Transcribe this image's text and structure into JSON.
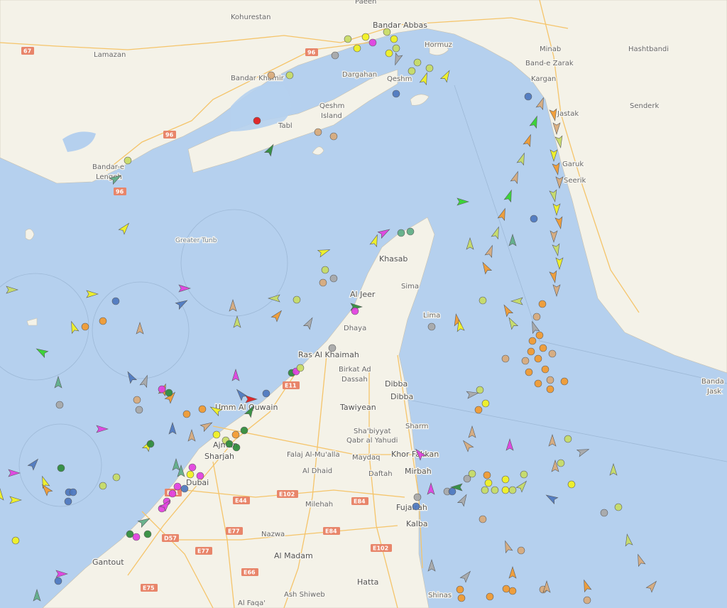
{
  "map": {
    "colors": {
      "water": "#b5d0ee",
      "land": "#f4f2e8",
      "road": "#f5c46a",
      "border": "#c9b8c9"
    },
    "places": [
      {
        "id": "paeen",
        "text": "Paeen"
      },
      {
        "id": "bandar-abbas",
        "text": "Bandar Abbas"
      },
      {
        "id": "kohurestan",
        "text": "Kohurestan"
      },
      {
        "id": "minab",
        "text": "Minab"
      },
      {
        "id": "hashtbandi",
        "text": "Hashtbandi"
      },
      {
        "id": "lamazan",
        "text": "Lamazan"
      },
      {
        "id": "hormuz",
        "text": "Hormuz"
      },
      {
        "id": "band-e-zarak",
        "text": "Band-e Zarak"
      },
      {
        "id": "bandar-khamir",
        "text": "Bandar Khamir"
      },
      {
        "id": "dargahan",
        "text": "Dargahan"
      },
      {
        "id": "qeshm",
        "text": "Qeshm"
      },
      {
        "id": "kargan",
        "text": "Kargan"
      },
      {
        "id": "qeshm-island-1",
        "text": "Qeshm"
      },
      {
        "id": "qeshm-island-2",
        "text": "Island"
      },
      {
        "id": "tabl",
        "text": "Tabl"
      },
      {
        "id": "jask-west",
        "text": "Jastak"
      },
      {
        "id": "senderk",
        "text": "Senderk"
      },
      {
        "id": "bandar-lengeh-1",
        "text": "Bandar-e"
      },
      {
        "id": "bandar-lengeh-2",
        "text": "Lengeh"
      },
      {
        "id": "garuk",
        "text": "Garuk"
      },
      {
        "id": "seerik",
        "text": "Seerik"
      },
      {
        "id": "greater-tunb",
        "text": "Greater Tunb"
      },
      {
        "id": "khasab",
        "text": "Khasab"
      },
      {
        "id": "sima",
        "text": "Sima"
      },
      {
        "id": "al-jeer",
        "text": "Al Jeer"
      },
      {
        "id": "lima",
        "text": "Lima"
      },
      {
        "id": "dhaya",
        "text": "Dhaya"
      },
      {
        "id": "ras-al-khaimah",
        "text": "Ras Al Khaimah"
      },
      {
        "id": "birkat-1",
        "text": "Birkat Ad"
      },
      {
        "id": "birkat-2",
        "text": "Dassah"
      },
      {
        "id": "dibba-1",
        "text": "Dibba"
      },
      {
        "id": "dibba-2",
        "text": "Dibba"
      },
      {
        "id": "bandar-jask-1",
        "text": "Banda"
      },
      {
        "id": "bandar-jask-2",
        "text": "Jask"
      },
      {
        "id": "umm-al-quwain",
        "text": "Umm Al Quwain"
      },
      {
        "id": "tawiyean",
        "text": "Tawiyean"
      },
      {
        "id": "sharm",
        "text": "Sharm"
      },
      {
        "id": "shabiyyat-1",
        "text": "Sha'biyyat"
      },
      {
        "id": "shabiyyat-2",
        "text": "Qabr al Yahudi"
      },
      {
        "id": "ajman",
        "text": "Ajman"
      },
      {
        "id": "sharjah",
        "text": "Sharjah"
      },
      {
        "id": "falaj",
        "text": "Falaj Al-Mu'alla"
      },
      {
        "id": "maydaq",
        "text": "Maydaq"
      },
      {
        "id": "khor-fakkan",
        "text": "Khor Fakkan"
      },
      {
        "id": "al-dhaid",
        "text": "Al Dhaid"
      },
      {
        "id": "daftah",
        "text": "Daftah"
      },
      {
        "id": "mirbah",
        "text": "Mirbah"
      },
      {
        "id": "dubai",
        "text": "Dubai"
      },
      {
        "id": "milehah",
        "text": "Milehah"
      },
      {
        "id": "fujairah",
        "text": "Fujairah"
      },
      {
        "id": "kalba",
        "text": "Kalba"
      },
      {
        "id": "nazwa",
        "text": "Nazwa"
      },
      {
        "id": "al-madam",
        "text": "Al Madam"
      },
      {
        "id": "gantout",
        "text": "Gantout"
      },
      {
        "id": "hatta",
        "text": "Hatta"
      },
      {
        "id": "ash-shiweb",
        "text": "Ash Shiweb"
      },
      {
        "id": "shinas",
        "text": "Shinas"
      },
      {
        "id": "al-faqa",
        "text": "Al Faqa'"
      }
    ],
    "road_shields": [
      "67",
      "96",
      "96",
      "96",
      "E11",
      "E11",
      "E102",
      "E84",
      "E84",
      "E44",
      "E102",
      "E77",
      "D57",
      "E77",
      "E66",
      "E75"
    ],
    "vessel_colors": {
      "yellow": "#f2f21e",
      "orange": "#f39a2e",
      "green": "#2e8b3a",
      "lime": "#33d42b",
      "magenta": "#e23fe0",
      "grey": "#a8a8a8",
      "blue": "#4d78bf",
      "olive": "#c8dc64",
      "red": "#e41b1b",
      "tan": "#d9ab7a",
      "teal": "#5fae86"
    }
  }
}
